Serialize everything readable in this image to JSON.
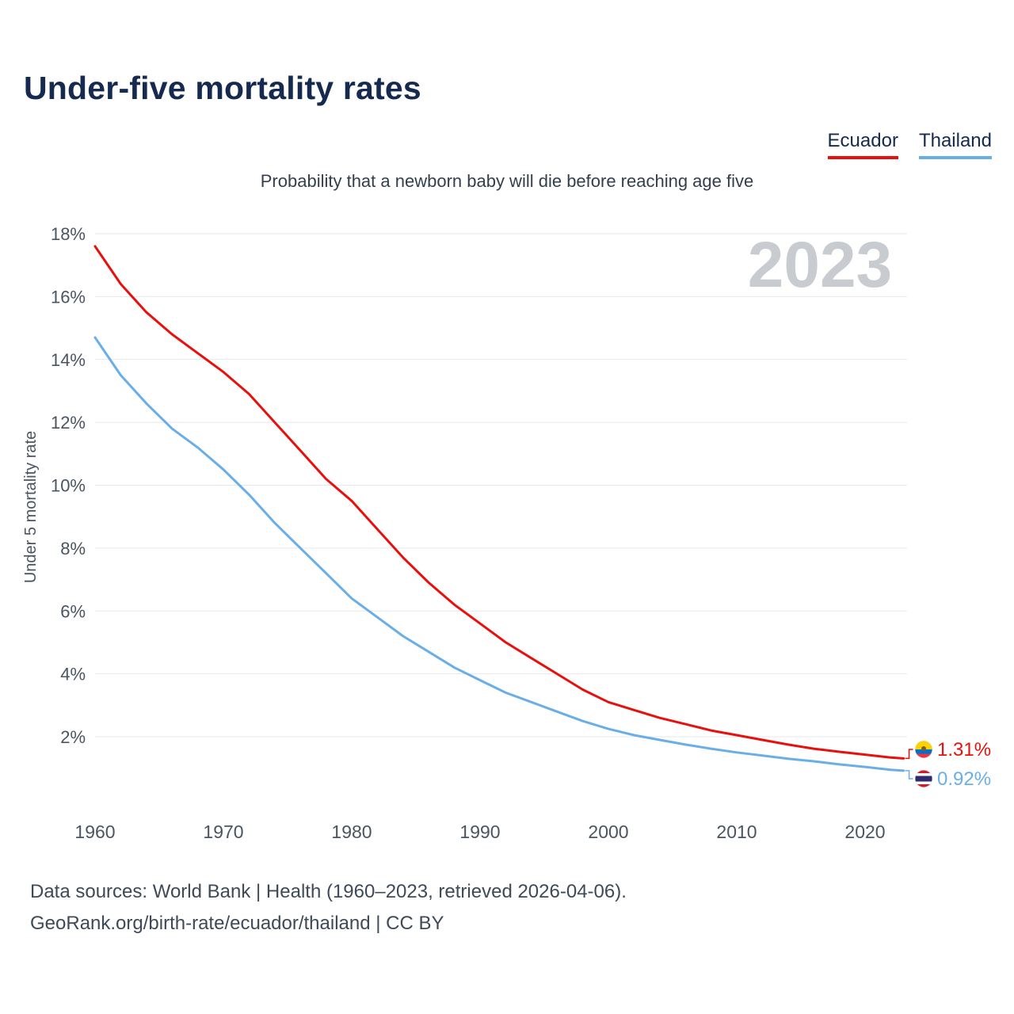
{
  "page": {
    "title": "Under-five mortality rates",
    "subtitle": "Probability that a newborn baby will die before reaching age five",
    "watermark": "2023",
    "footer_line1": "Data sources: World Bank | Health (1960–2023, retrieved 2026-04-06).",
    "footer_line2": "GeoRank.org/birth-rate/ecuador/thailand | CC BY"
  },
  "legend": [
    {
      "label": "Ecuador",
      "color": "#e8100c"
    },
    {
      "label": "Thailand",
      "color": "#6aaee8"
    }
  ],
  "chart_data": {
    "type": "line",
    "title": "Under-five mortality rates",
    "subtitle": "Probability that a newborn baby will die before reaching age five",
    "xlabel": "",
    "ylabel": "Under 5 mortality rate",
    "x_ticks": [
      1960,
      1970,
      1980,
      1990,
      2000,
      2010,
      2020
    ],
    "y_ticks": [
      "2%",
      "4%",
      "6%",
      "8%",
      "10%",
      "12%",
      "14%",
      "16%",
      "18%"
    ],
    "xlim": [
      1960,
      2023
    ],
    "ylim": [
      0,
      18.6
    ],
    "grid": true,
    "legend_position": "top-right",
    "series": [
      {
        "name": "Ecuador",
        "color": "#e8100c",
        "flag": "ecuador",
        "end_label": "1.31%",
        "x": [
          1960,
          1962,
          1964,
          1966,
          1968,
          1970,
          1972,
          1974,
          1976,
          1978,
          1980,
          1982,
          1984,
          1986,
          1988,
          1990,
          1992,
          1994,
          1996,
          1998,
          2000,
          2002,
          2004,
          2006,
          2008,
          2010,
          2012,
          2014,
          2016,
          2018,
          2020,
          2022,
          2023
        ],
        "values": [
          17.6,
          16.4,
          15.5,
          14.8,
          14.2,
          13.6,
          12.9,
          12.0,
          11.1,
          10.2,
          9.5,
          8.6,
          7.7,
          6.9,
          6.2,
          5.6,
          5.0,
          4.5,
          4.0,
          3.5,
          3.1,
          2.85,
          2.6,
          2.4,
          2.2,
          2.05,
          1.9,
          1.75,
          1.62,
          1.52,
          1.43,
          1.34,
          1.31
        ]
      },
      {
        "name": "Thailand",
        "color": "#6aaee8",
        "flag": "thailand",
        "end_label": "0.92%",
        "x": [
          1960,
          1962,
          1964,
          1966,
          1968,
          1970,
          1972,
          1974,
          1976,
          1978,
          1980,
          1982,
          1984,
          1986,
          1988,
          1990,
          1992,
          1994,
          1996,
          1998,
          2000,
          2002,
          2004,
          2006,
          2008,
          2010,
          2012,
          2014,
          2016,
          2018,
          2020,
          2022,
          2023
        ],
        "values": [
          14.7,
          13.5,
          12.6,
          11.8,
          11.2,
          10.5,
          9.7,
          8.8,
          8.0,
          7.2,
          6.4,
          5.8,
          5.2,
          4.7,
          4.2,
          3.8,
          3.4,
          3.1,
          2.8,
          2.5,
          2.25,
          2.05,
          1.9,
          1.75,
          1.62,
          1.5,
          1.4,
          1.3,
          1.22,
          1.12,
          1.04,
          0.95,
          0.92
        ]
      }
    ]
  }
}
